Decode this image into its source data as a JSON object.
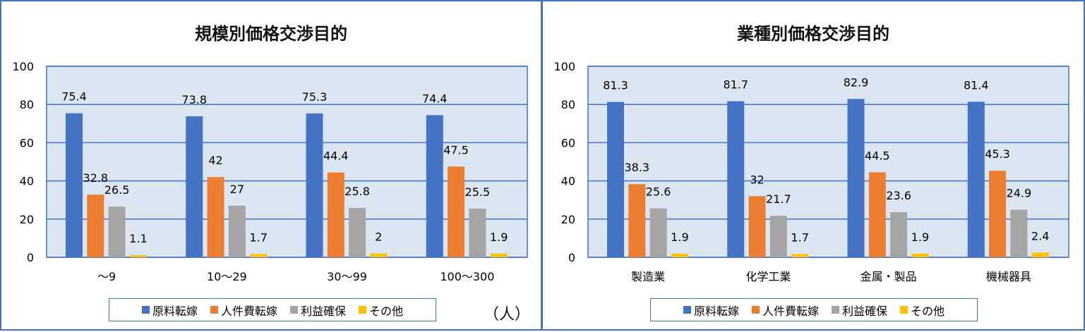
{
  "chart_data": [
    {
      "type": "bar",
      "title": "規模別価格交渉目的",
      "unit_note": "（人）",
      "categories": [
        "～9",
        "10～29",
        "30～99",
        "100～300"
      ],
      "series": [
        {
          "name": "原料転嫁",
          "color": "#4472c4",
          "values": [
            75.4,
            73.8,
            75.3,
            74.4
          ]
        },
        {
          "name": "人件費転嫁",
          "color": "#ed7d31",
          "values": [
            32.8,
            42,
            44.4,
            47.5
          ]
        },
        {
          "name": "利益確保",
          "color": "#a5a5a5",
          "values": [
            26.5,
            27,
            25.8,
            25.5
          ]
        },
        {
          "name": "その他",
          "color": "#ffc000",
          "values": [
            1.1,
            1.7,
            2,
            1.9
          ]
        }
      ],
      "ylim": [
        0,
        100
      ],
      "yticks": [
        "0",
        "20",
        "40",
        "60",
        "80",
        "100"
      ],
      "grid": true,
      "legend_position": "bottom"
    },
    {
      "type": "bar",
      "title": "業種別価格交渉目的",
      "categories": [
        "製造業",
        "化学工業",
        "金属・製品",
        "機械器具"
      ],
      "series": [
        {
          "name": "原料転嫁",
          "color": "#4472c4",
          "values": [
            81.3,
            81.7,
            82.9,
            81.4
          ]
        },
        {
          "name": "人件費転嫁",
          "color": "#ed7d31",
          "values": [
            38.3,
            32,
            44.5,
            45.3
          ]
        },
        {
          "name": "利益確保",
          "color": "#a5a5a5",
          "values": [
            25.6,
            21.7,
            23.6,
            24.9
          ]
        },
        {
          "name": "その他",
          "color": "#ffc000",
          "values": [
            1.9,
            1.7,
            1.9,
            2.4
          ]
        }
      ],
      "ylim": [
        0,
        100
      ],
      "yticks": [
        "0",
        "20",
        "40",
        "60",
        "80",
        "100"
      ],
      "grid": true,
      "legend_position": "bottom"
    }
  ],
  "colors": {
    "plot_background": "#dce6f2",
    "gridline": "#4472c4",
    "frame": "#4472c4"
  }
}
